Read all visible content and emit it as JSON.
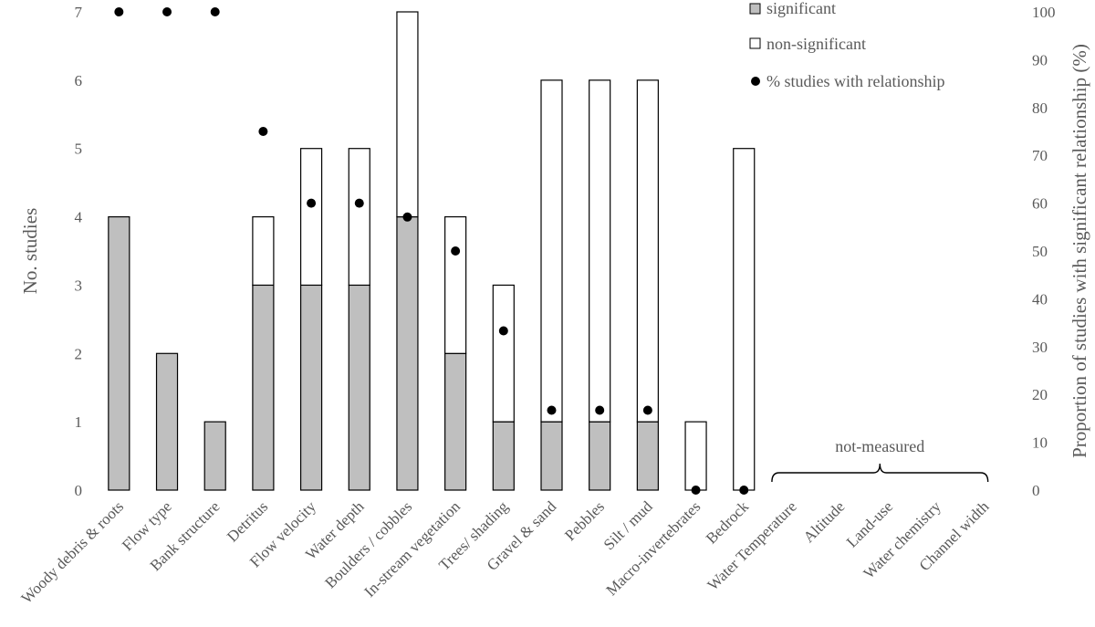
{
  "chart_data": {
    "type": "bar",
    "stacked": true,
    "title": "",
    "categories": [
      "Woody debris & roots",
      "Flow type",
      "Bank structure",
      "Detritus",
      "Flow velocity",
      "Water depth",
      "Boulders / cobbles",
      "In-stream vegetation",
      "Trees/ shading",
      "Gravel & sand",
      "Pebbles",
      "Silt / mud",
      "Macro-invertebrates",
      "Bedrock",
      "Water Temperature",
      "Altitude",
      "Land-use",
      "Water chemistry",
      "Channel width"
    ],
    "series": [
      {
        "name": "significant",
        "axis": "left",
        "mark": "bar",
        "color": "#bfbfbf",
        "values": [
          4,
          2,
          1,
          3,
          3,
          3,
          4,
          2,
          1,
          1,
          1,
          1,
          0,
          0,
          null,
          null,
          null,
          null,
          null
        ]
      },
      {
        "name": "non-significant",
        "axis": "left",
        "mark": "bar",
        "color": "#ffffff",
        "values": [
          0,
          0,
          0,
          1,
          2,
          2,
          3,
          2,
          2,
          5,
          5,
          5,
          1,
          5,
          null,
          null,
          null,
          null,
          null
        ]
      },
      {
        "name": "% studies with relationship",
        "axis": "right",
        "mark": "point",
        "color": "#000000",
        "values": [
          100,
          100,
          100,
          75,
          60,
          60,
          57.1,
          50,
          33.3,
          16.7,
          16.7,
          16.7,
          0,
          0,
          null,
          null,
          null,
          null,
          null
        ]
      }
    ],
    "ylabel": "No. studies",
    "ylim": [
      0,
      7
    ],
    "yticks": [
      "0",
      "1",
      "2",
      "3",
      "4",
      "5",
      "6",
      "7"
    ],
    "y2label": "Proportion of  studies with significant relationship  (%)",
    "y2lim": [
      0,
      100
    ],
    "y2ticks": [
      "0",
      "10",
      "20",
      "30",
      "40",
      "50",
      "60",
      "70",
      "80",
      "90",
      "100"
    ],
    "grid": false,
    "legend_position": "top-right",
    "annotations": [
      {
        "text": "not-measured",
        "category_span": [
          "Water Temperature",
          "Channel width"
        ]
      }
    ]
  }
}
